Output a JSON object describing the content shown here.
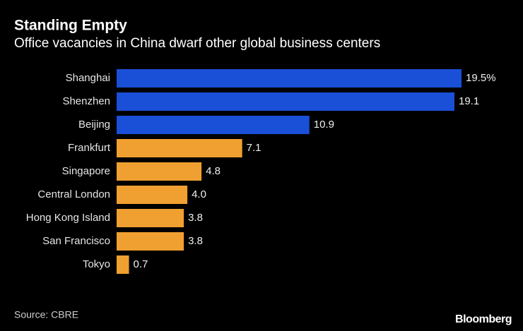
{
  "chart_data": {
    "type": "bar",
    "orientation": "horizontal",
    "title": "Standing Empty",
    "subtitle": "Office vacancies in China dwarf other global business centers",
    "categories": [
      "Shanghai",
      "Shenzhen",
      "Beijing",
      "Frankfurt",
      "Singapore",
      "Central London",
      "Hong Kong Island",
      "San Francisco",
      "Tokyo"
    ],
    "values": [
      19.5,
      19.1,
      10.9,
      7.1,
      4.8,
      4.0,
      3.8,
      3.8,
      0.7
    ],
    "value_labels": [
      "19.5%",
      "19.1",
      "10.9",
      "7.1",
      "4.8",
      "4.0",
      "3.8",
      "3.8",
      "0.7"
    ],
    "colors": [
      "#1a4fd8",
      "#1a4fd8",
      "#1a4fd8",
      "#f0a030",
      "#f0a030",
      "#f0a030",
      "#f0a030",
      "#f0a030",
      "#f0a030"
    ],
    "source": "Source: CBRE",
    "brand": "Bloomberg"
  }
}
